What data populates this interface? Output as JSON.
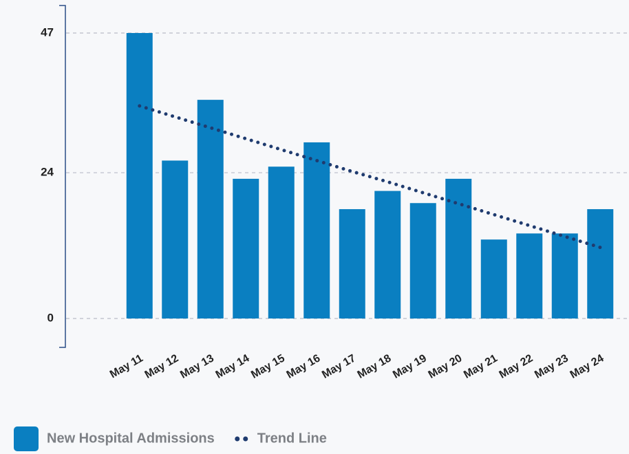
{
  "chart_data": {
    "type": "bar",
    "categories": [
      "May 11",
      "May 12",
      "May 13",
      "May 14",
      "May 15",
      "May 16",
      "May 17",
      "May 18",
      "May 19",
      "May 20",
      "May 21",
      "May 22",
      "May 23",
      "May 24"
    ],
    "series": [
      {
        "name": "New Hospital Admissions",
        "type": "bar",
        "color": "#0a7fc1",
        "values": [
          47,
          26,
          36,
          23,
          25,
          29,
          18,
          21,
          19,
          23,
          13,
          14,
          14,
          18
        ]
      },
      {
        "name": "Trend Line",
        "type": "line",
        "style": "dotted",
        "color": "#1f3b6f",
        "values": [
          35,
          33.2,
          31.4,
          29.6,
          27.8,
          26.0,
          24.2,
          22.5,
          20.7,
          18.9,
          17.1,
          15.3,
          13.5,
          11.7
        ]
      }
    ],
    "ylim": [
      0,
      47
    ],
    "yticks": [
      0,
      24,
      47
    ],
    "grid": true,
    "legend": "bottom-left"
  }
}
